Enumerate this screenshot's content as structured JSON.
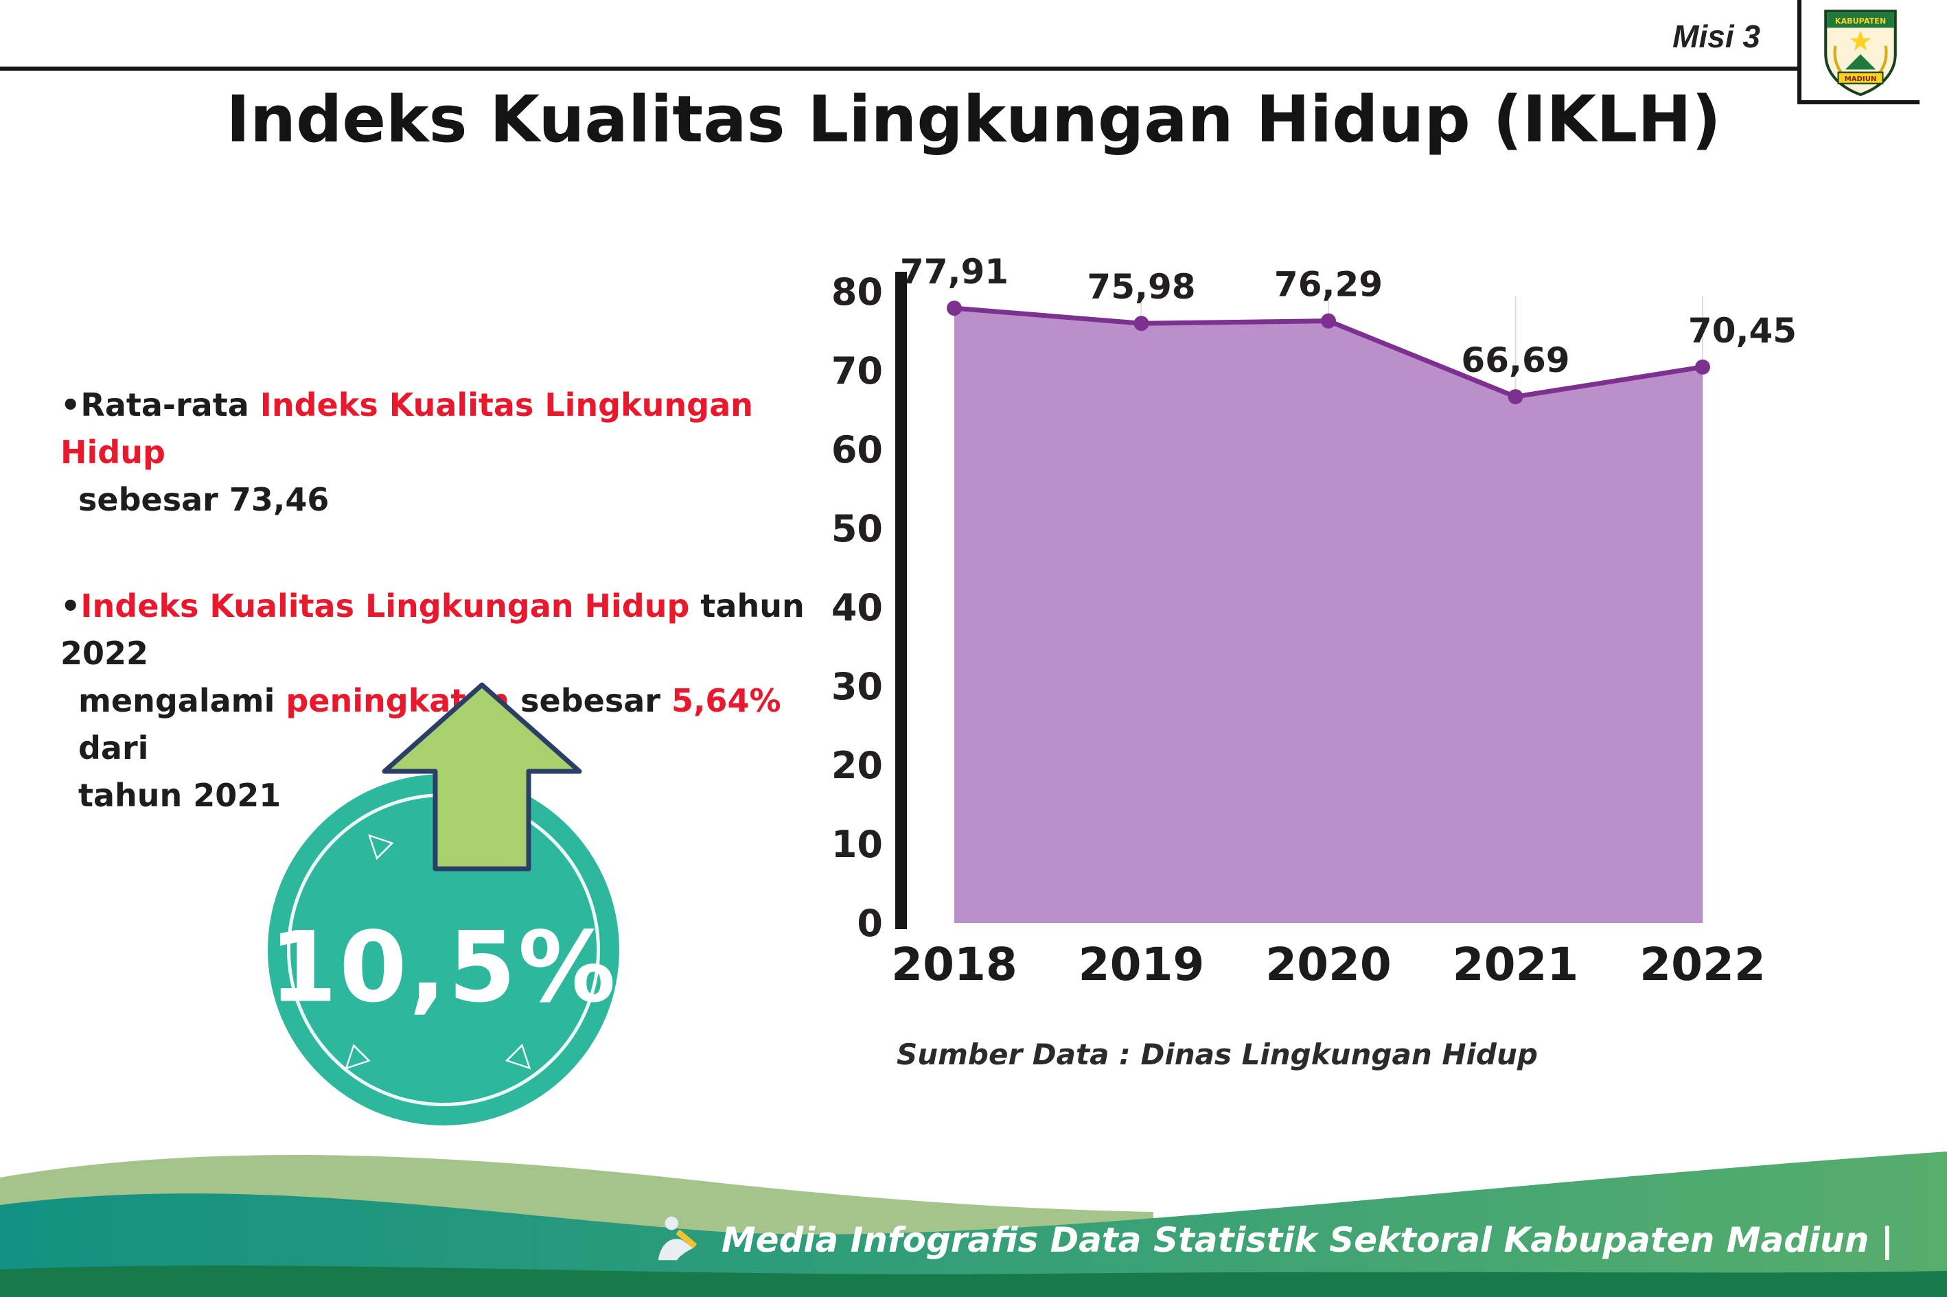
{
  "header": {
    "misi_label": "Misi 3",
    "title": "Indeks Kualitas Lingkungan Hidup (IKLH)",
    "logo": {
      "top_text": "KABUPATEN",
      "bottom_text": "MADIUN"
    }
  },
  "colors": {
    "accent_red": "#e8192c",
    "teal": "#2db79c",
    "arrow_green": "#a9d06f",
    "arrow_outline": "#2b3f66",
    "purple_fill": "#bb8fca",
    "purple_line": "#7c3190",
    "footer_teal": "#129183",
    "footer_green": "#57ad6c",
    "footer_dark_green": "#177a4a",
    "footer_sage": "#a4c48b"
  },
  "bullets": {
    "marker": "•",
    "b1": {
      "l1a": "Rata-rata ",
      "l1b": "Indeks Kualitas Lingkungan Hidup",
      "l2": "sebesar 73,46"
    },
    "b2": {
      "l1a": "Indeks Kualitas Lingkungan Hidup",
      "l1b": " tahun 2022",
      "l2a": "mengalami ",
      "l2b": "peningkatan",
      "l2c": " sebesar ",
      "l2d": "5,64%",
      "l2e": " dari",
      "l3": "tahun 2021"
    }
  },
  "badge": {
    "value": "10,5%"
  },
  "chart_data": {
    "type": "area",
    "categories": [
      "2018",
      "2019",
      "2020",
      "2021",
      "2022"
    ],
    "values": [
      77.91,
      75.98,
      76.29,
      66.69,
      70.45
    ],
    "value_labels": [
      "77,91",
      "75,98",
      "76,29",
      "66,69",
      "70,45"
    ],
    "title": "",
    "xlabel": "",
    "ylabel": "",
    "ylim": [
      0,
      80
    ],
    "yticks": [
      0,
      10,
      20,
      30,
      40,
      50,
      60,
      70,
      80
    ],
    "grid": "vertical-light",
    "legend": "none",
    "area_color": "#bb8fca",
    "line_color": "#7c3190",
    "source_note": "Sumber Data : Dinas Lingkungan Hidup"
  },
  "footer": {
    "credit": "Media Infografis Data Statistik Sektoral Kabupaten Madiun |"
  }
}
